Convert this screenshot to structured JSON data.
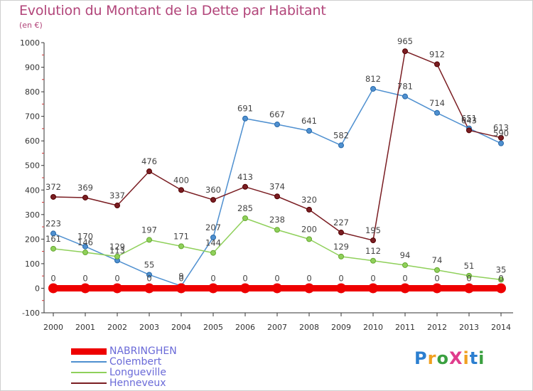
{
  "title": "Evolution du Montant de la Dette par Habitant",
  "subtitle": "(en €)",
  "logo": {
    "text": "ProXiti",
    "colors": [
      "#2c7fd0",
      "#f0a020",
      "#3aa040",
      "#e03c8c",
      "#f0a020",
      "#2c7fd0",
      "#3aa040"
    ]
  },
  "chart_data": {
    "type": "line",
    "title": "Evolution du Montant de la Dette par Habitant",
    "ylabel": "(en €)",
    "ylim": [
      -100,
      1000
    ],
    "yticks": [
      -100,
      0,
      100,
      200,
      300,
      400,
      500,
      600,
      700,
      800,
      900,
      1000
    ],
    "x": [
      "2000",
      "2001",
      "2002",
      "2003",
      "2004",
      "2005",
      "2006",
      "2007",
      "2008",
      "2009",
      "2010",
      "2011",
      "2012",
      "2013",
      "2014"
    ],
    "grid": false,
    "legend_position": "bottom-left",
    "series": [
      {
        "name": "NABRINGHEN",
        "color": "#ee0000",
        "values": [
          0,
          0,
          0,
          0,
          0,
          0,
          0,
          0,
          0,
          0,
          0,
          0,
          0,
          0,
          0
        ]
      },
      {
        "name": "Colembert",
        "color": "#4f90d0",
        "values": [
          223,
          170,
          113,
          55,
          9,
          207,
          691,
          667,
          641,
          582,
          812,
          781,
          714,
          651,
          590
        ]
      },
      {
        "name": "Longueville",
        "color": "#8fd05a",
        "values": [
          161,
          146,
          129,
          197,
          171,
          144,
          285,
          238,
          200,
          129,
          112,
          94,
          74,
          51,
          35
        ]
      },
      {
        "name": "Henneveux",
        "color": "#7a1d22",
        "values": [
          372,
          369,
          337,
          476,
          400,
          360,
          413,
          374,
          320,
          227,
          195,
          965,
          912,
          643,
          613
        ]
      }
    ]
  }
}
